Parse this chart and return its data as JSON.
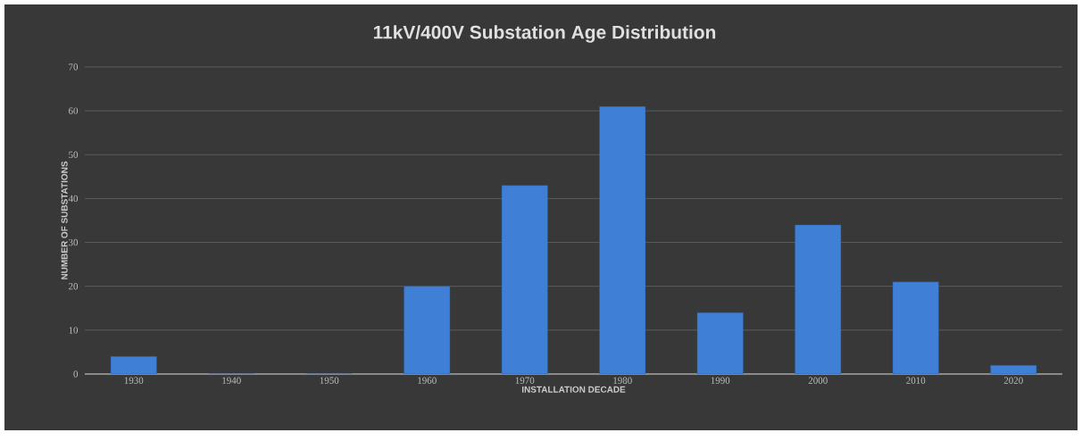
{
  "chart_data": {
    "type": "bar",
    "title": "11kV/400V Substation Age Distribution",
    "xlabel": "INSTALLATION DECADE",
    "ylabel": "NUMBER OF SUBSTATIONS",
    "categories": [
      "1930",
      "1940",
      "1950",
      "1960",
      "1970",
      "1980",
      "1990",
      "2000",
      "2010",
      "2020"
    ],
    "values": [
      4,
      0,
      0,
      20,
      43,
      61,
      14,
      34,
      21,
      2
    ],
    "color": "#3f7fd6",
    "ylim": [
      0,
      70
    ],
    "yticks": [
      0,
      10,
      20,
      30,
      40,
      50,
      60,
      70
    ],
    "grid": "y"
  }
}
